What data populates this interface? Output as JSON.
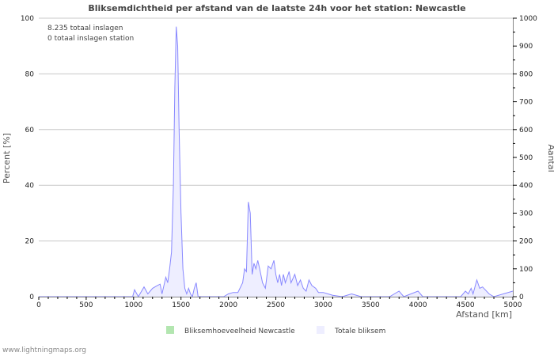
{
  "chart_data": {
    "type": "area",
    "title": "Bliksemdichtheid per afstand van de laatste 24h voor het station: Newcastle",
    "xlabel": "Afstand   [km]",
    "ylabel": "Percent   [%]",
    "y2label": "Aantal",
    "xlim": [
      0,
      5000
    ],
    "ylim": [
      0,
      100
    ],
    "y2lim": [
      0,
      1000
    ],
    "xticks": [
      0,
      500,
      1000,
      1500,
      2000,
      2500,
      3000,
      3500,
      4000,
      4500,
      5000
    ],
    "yticks": [
      0,
      20,
      40,
      60,
      80,
      100
    ],
    "y2ticks": [
      0,
      100,
      200,
      300,
      400,
      500,
      600,
      700,
      800,
      900,
      1000
    ],
    "grid": true,
    "annotations": [
      "8.235 totaal inslagen",
      "0 totaal inslagen station"
    ],
    "legend": {
      "placement": "bottom",
      "entries": [
        {
          "label": "Bliksemhoeveelheid Newcastle",
          "color": "#b3e6b0"
        },
        {
          "label": "Totale bliksem",
          "color": "#eeeeff"
        }
      ]
    },
    "series": [
      {
        "name": "Bliksemhoeveelheid Newcastle",
        "x": [
          0,
          5000
        ],
        "y": [
          0,
          0
        ]
      },
      {
        "name": "Totale bliksem",
        "x": [
          0,
          950,
          990,
          1010,
          1050,
          1110,
          1150,
          1200,
          1250,
          1280,
          1300,
          1340,
          1360,
          1380,
          1400,
          1420,
          1435,
          1450,
          1465,
          1480,
          1500,
          1520,
          1540,
          1560,
          1580,
          1600,
          1620,
          1640,
          1660,
          1680,
          1950,
          2000,
          2050,
          2100,
          2150,
          2170,
          2190,
          2210,
          2230,
          2250,
          2270,
          2290,
          2310,
          2330,
          2360,
          2390,
          2420,
          2450,
          2480,
          2500,
          2520,
          2540,
          2560,
          2580,
          2600,
          2640,
          2660,
          2700,
          2730,
          2760,
          2790,
          2820,
          2850,
          2880,
          2920,
          2950,
          3000,
          3050,
          3100,
          3200,
          3300,
          3400,
          3700,
          3800,
          3850,
          4000,
          4050,
          4450,
          4500,
          4530,
          4560,
          4580,
          4620,
          4650,
          4680,
          4750,
          4800,
          4900,
          5000
        ],
        "y": [
          0,
          0,
          0,
          2.5,
          0,
          3.5,
          1,
          3,
          4,
          4.5,
          1,
          7,
          5,
          10,
          16,
          40,
          75,
          97,
          90,
          60,
          30,
          10,
          3,
          1,
          3,
          1,
          0,
          3,
          5,
          0,
          0,
          1,
          1.5,
          1.5,
          5,
          10,
          9,
          34,
          30,
          8,
          12,
          10,
          13,
          10,
          5,
          3,
          11,
          10,
          13,
          8,
          5,
          8,
          4,
          8,
          5,
          9,
          5,
          8,
          4,
          6,
          3,
          2,
          6,
          4,
          3,
          1.5,
          1.5,
          1,
          0.5,
          0,
          1,
          0,
          0,
          2,
          0,
          2,
          0,
          0,
          2,
          1,
          3,
          1,
          6,
          3,
          3.5,
          1,
          0,
          1,
          2
        ]
      }
    ]
  },
  "footer": "www.lightningmaps.org"
}
